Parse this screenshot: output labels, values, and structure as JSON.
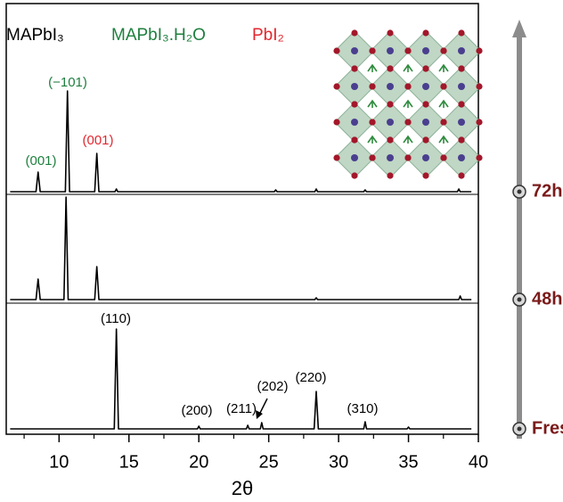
{
  "chart_data": [
    {
      "type": "line",
      "label": "72h",
      "color": "#000000",
      "legend": [
        {
          "name": "MAPbI₃",
          "color": "#000000"
        },
        {
          "name": "MAPbI₃.H₂O",
          "color": "#1e7f3e"
        },
        {
          "name": "PbI₂",
          "color": "#e3262e"
        }
      ],
      "annotations": [
        {
          "text": "(001)",
          "color": "#1e7f3e"
        },
        {
          "text": "(−101)",
          "color": "#1e7f3e"
        },
        {
          "text": "(001)",
          "color": "#e3262e"
        }
      ],
      "xlim": [
        6.22,
        40
      ],
      "ylim": [
        -3,
        211
      ],
      "x": [
        6.5,
        8.35,
        8.5,
        8.65,
        10.45,
        10.6,
        10.75,
        12.55,
        12.7,
        12.85,
        14.0,
        14.1,
        14.2,
        25.4,
        25.5,
        25.6,
        28.3,
        28.4,
        28.5,
        31.8,
        31.9,
        32.0,
        38.5,
        38.6,
        38.7,
        39.5
      ],
      "values": [
        0,
        0,
        22,
        0,
        0,
        113,
        0,
        0,
        43,
        0,
        0,
        3,
        0,
        0,
        2,
        0,
        0,
        3,
        0,
        0,
        2,
        0,
        0,
        3,
        0,
        0
      ]
    },
    {
      "type": "line",
      "label": "48h",
      "color": "#000000",
      "xlim": [
        6.22,
        40
      ],
      "ylim": [
        -4,
        118
      ],
      "x": [
        6.5,
        8.35,
        8.5,
        8.65,
        10.35,
        10.5,
        10.65,
        12.55,
        12.7,
        12.85,
        28.3,
        28.4,
        28.5,
        38.6,
        38.7,
        38.8,
        39.5
      ],
      "values": [
        0,
        0,
        23,
        0,
        0,
        115,
        0,
        0,
        37,
        0,
        0,
        2,
        0,
        0,
        4,
        0,
        0
      ]
    },
    {
      "type": "line",
      "label": "Fresh",
      "color": "#000000",
      "annotations": [
        {
          "text": "(110)",
          "color": "#000000"
        },
        {
          "text": "(200)",
          "color": "#000000"
        },
        {
          "text": "(211)",
          "color": "#000000"
        },
        {
          "text": "(202)",
          "color": "#000000"
        },
        {
          "text": "(220)",
          "color": "#000000"
        },
        {
          "text": "(310)",
          "color": "#000000"
        }
      ],
      "xlim": [
        6.22,
        40
      ],
      "ylim": [
        -6,
        141
      ],
      "xticks": [
        10,
        15,
        20,
        25,
        30,
        35,
        40
      ],
      "xminor": [
        7.5,
        12.5,
        17.5,
        22.5,
        27.5,
        32.5,
        37.5
      ],
      "xlabel": "2θ",
      "x": [
        6.5,
        13.95,
        14.1,
        14.25,
        19.9,
        20.0,
        20.1,
        23.4,
        23.5,
        23.6,
        24.4,
        24.5,
        24.6,
        28.25,
        28.4,
        28.55,
        31.8,
        31.9,
        32.0,
        34.9,
        35.0,
        35.1,
        39.5
      ],
      "values": [
        0,
        0,
        112,
        0,
        0,
        3,
        0,
        0,
        4,
        0,
        0,
        7,
        0,
        0,
        42,
        0,
        0,
        8,
        0,
        0,
        2,
        0,
        0
      ]
    }
  ]
}
